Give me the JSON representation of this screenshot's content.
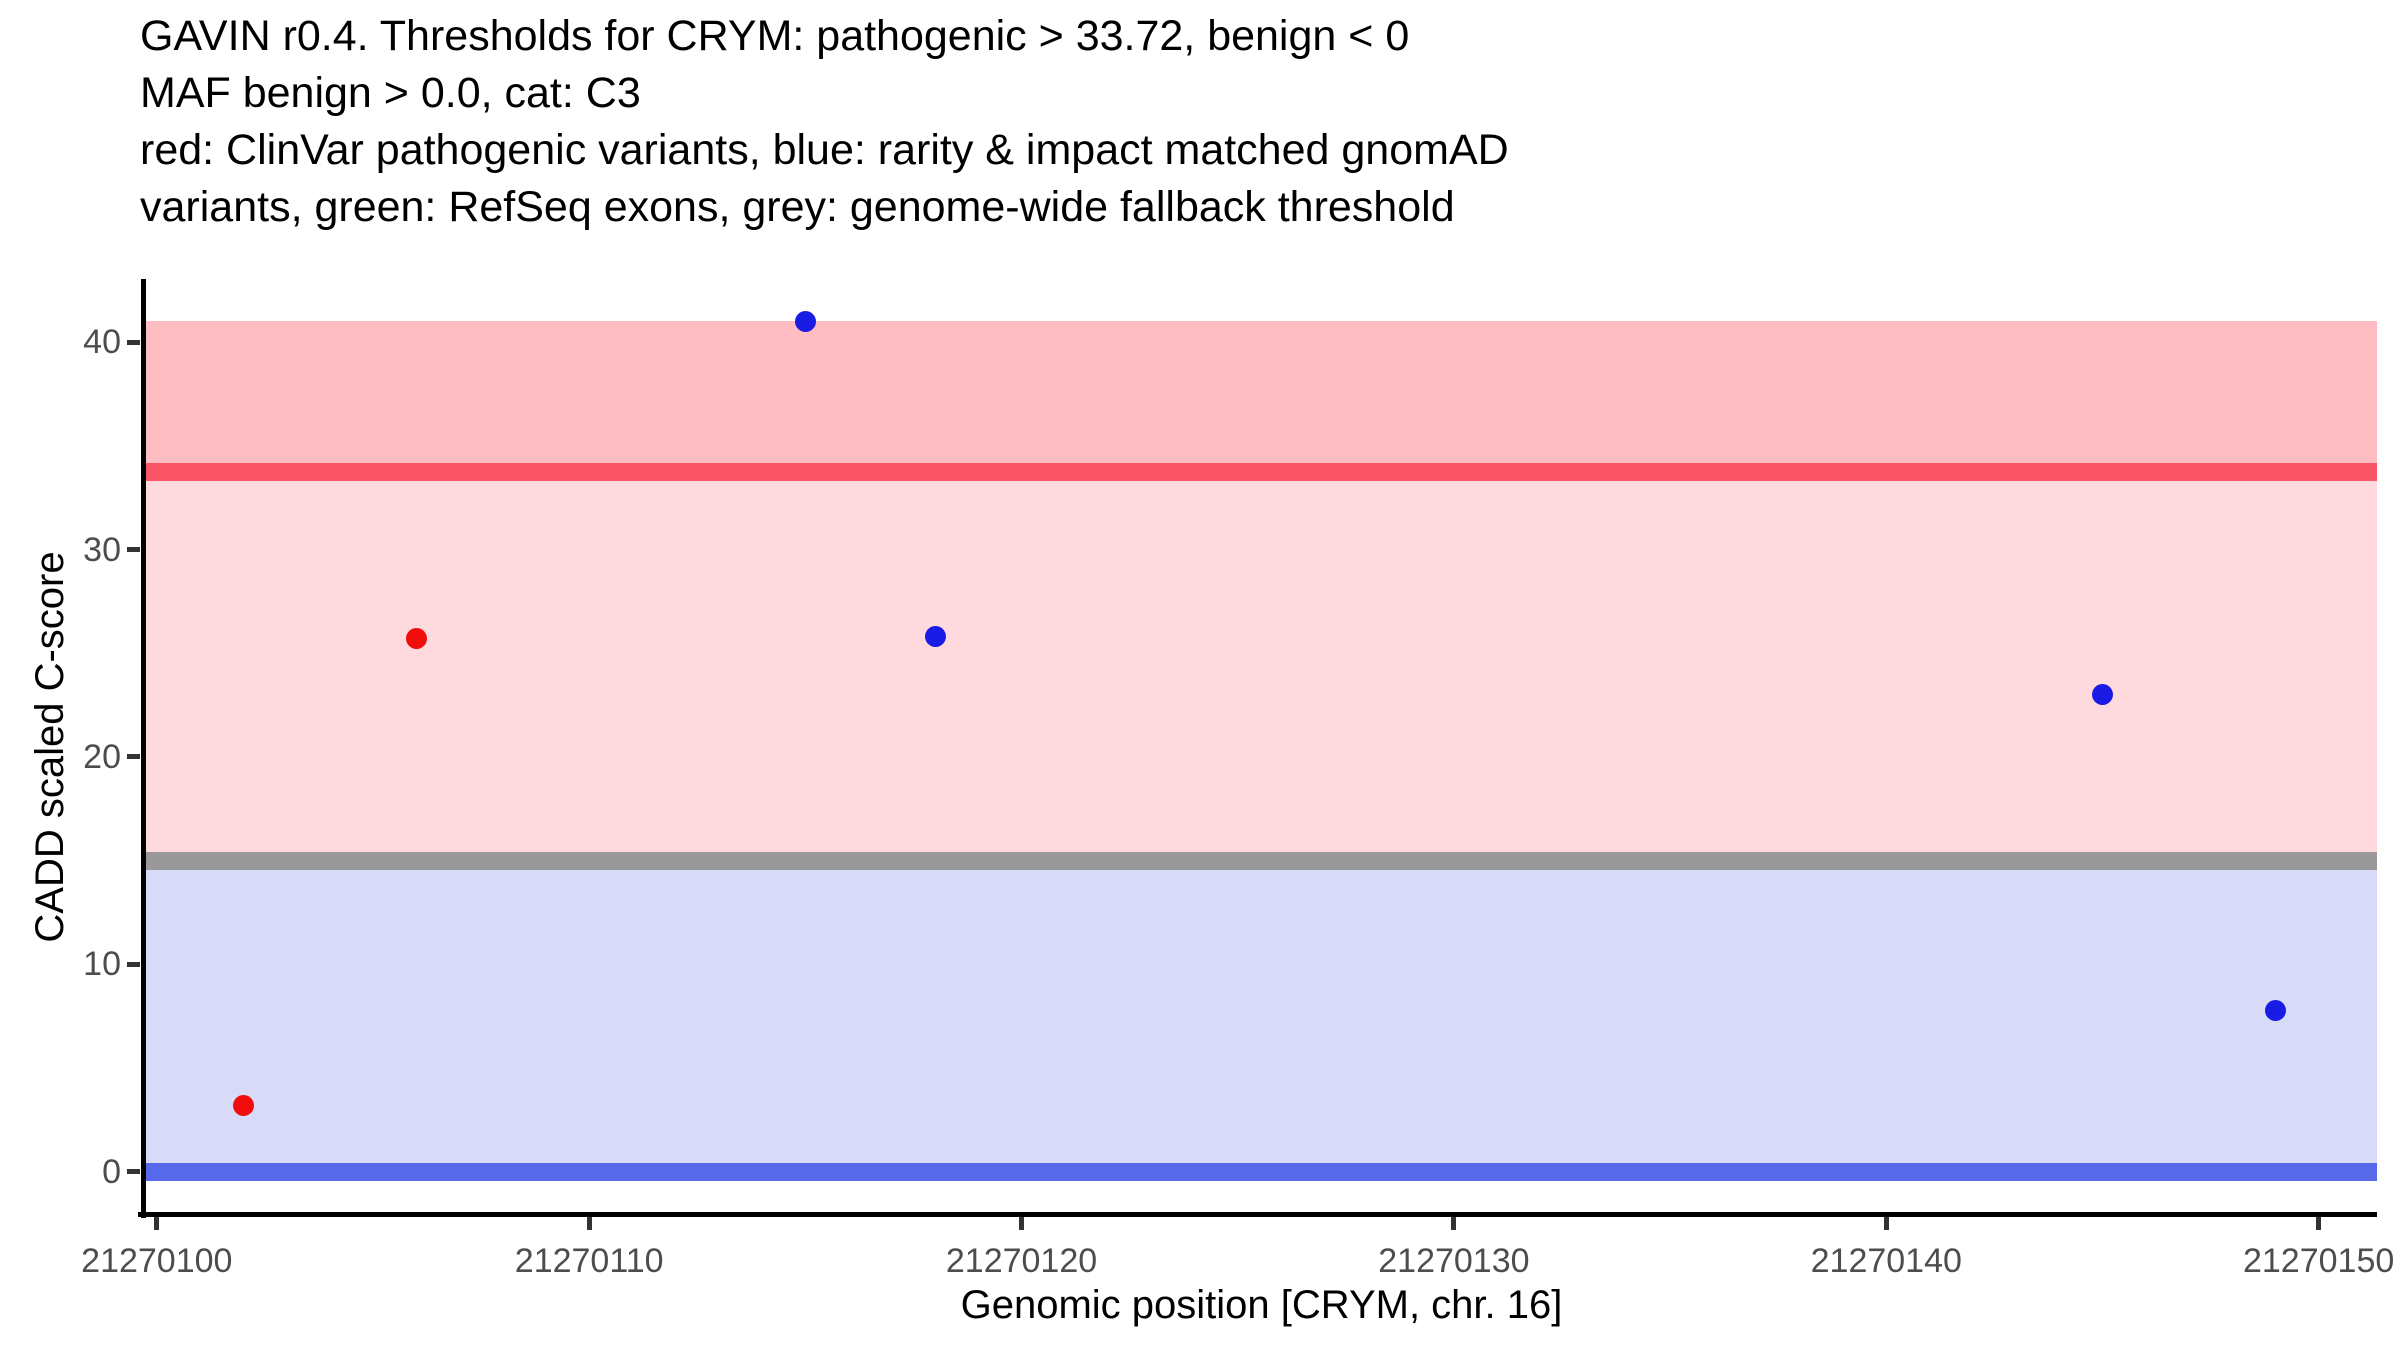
{
  "header": {
    "title_lines": [
      "GAVIN r0.4. Thresholds for CRYM: pathogenic > 33.72, benign < 0",
      "MAF benign > 0.0, cat: C3",
      "red: ClinVar pathogenic variants, blue: rarity & impact matched gnomAD",
      "variants, green: RefSeq exons, grey: genome-wide fallback threshold"
    ]
  },
  "chart_data": {
    "type": "scatter",
    "title": "GAVIN r0.4. Thresholds for CRYM: pathogenic > 33.72, benign < 0 MAF benign > 0.0, cat: C3 red: ClinVar pathogenic variants, blue: rarity & impact matched gnomAD variants, green: RefSeq exons, grey: genome-wide fallback threshold",
    "xlabel": "Genomic position [CRYM, chr. 16]",
    "ylabel": "CADD scaled C-score",
    "xlim": [
      21270099.75,
      21270151.35
    ],
    "ylim": [
      -2.08,
      43.04
    ],
    "x_ticks": [
      21270100,
      21270110,
      21270120,
      21270130,
      21270140,
      21270150
    ],
    "x_tick_labels": [
      "21270100",
      "21270110",
      "21270120",
      "21270130",
      "21270140",
      "21270150"
    ],
    "y_ticks": [
      0,
      10,
      20,
      30,
      40
    ],
    "y_tick_labels": [
      "0",
      "10",
      "20",
      "30",
      "40"
    ],
    "grid": false,
    "legend_position": "none",
    "bands": [
      {
        "name": "pathogenic-region-band",
        "from": 33.72,
        "to": 41.0,
        "color": "#FDBDC3"
      },
      {
        "name": "vous-region-band",
        "from": 15.0,
        "to": 33.72,
        "color": "#FED9DD"
      },
      {
        "name": "benign-region-band",
        "from": 0.0,
        "to": 15.0,
        "color": "#D7DBF7"
      }
    ],
    "hlines": [
      {
        "name": "pathogenic-threshold-line",
        "label": "pathogenic > 33.72",
        "value": 33.72,
        "color": "#FA5567"
      },
      {
        "name": "genome-wide-fallback-threshold-line",
        "label": "genome-wide fallback threshold",
        "value": 15.0,
        "color": "#999999"
      },
      {
        "name": "benign-threshold-line",
        "label": "benign < 0",
        "value": 0.0,
        "color": "#5569EA"
      }
    ],
    "series": [
      {
        "name": "ClinVar pathogenic variants",
        "color": "#F20D0D",
        "points": [
          {
            "x": 21270102,
            "y": 3.2
          },
          {
            "x": 21270106,
            "y": 25.7
          }
        ]
      },
      {
        "name": "rarity & impact matched gnomAD variants",
        "color": "#1B1BE6",
        "points": [
          {
            "x": 21270115,
            "y": 41.0
          },
          {
            "x": 21270118,
            "y": 25.8
          },
          {
            "x": 21270145,
            "y": 23.0
          },
          {
            "x": 21270149,
            "y": 7.8
          }
        ]
      }
    ]
  },
  "colors": {
    "background": "#FFFFFF",
    "axis_line": "#000000",
    "tick_mark": "#333333",
    "tick_label": "#4D4D4D",
    "title_text": "#000000"
  }
}
